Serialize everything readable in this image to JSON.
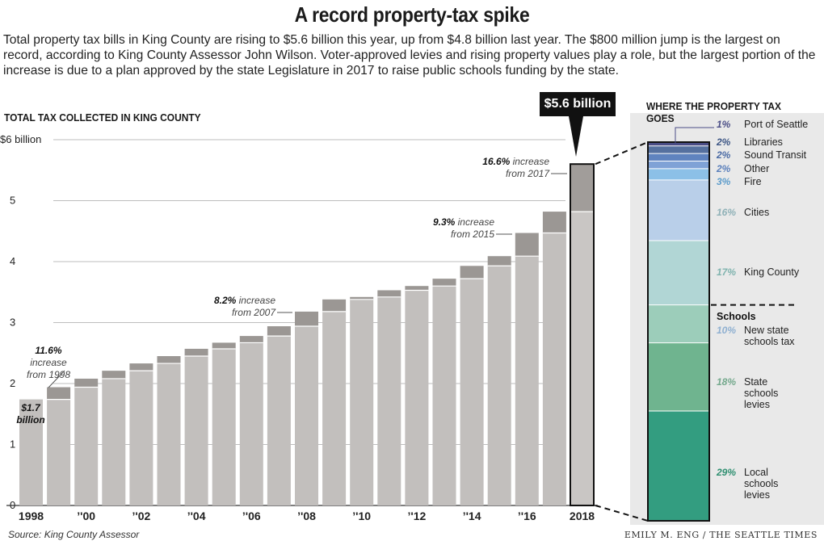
{
  "headline": "A record property-tax spike",
  "intro": "Total property tax bills in King County are rising to $5.6 billion this year, up from $4.8 billion last year. The $800 million jump is the largest on record, according to King County Assessor John Wilson. Voter-approved levies and rising property values play a role, but the largest portion of the increase is due to a plan approved by the state Legislature in 2017 to raise public schools funding by the state.",
  "left_title": "TOTAL TAX COLLECTED IN KING COUNTY",
  "right_title": "WHERE THE PROPERTY TAX GOES",
  "callout": "$5.6 billion",
  "source": "Source: King County Assessor",
  "credit": "EMILY M. ENG / THE SEATTLE TIMES",
  "colors": {
    "bar_base": "#c2bfbd",
    "bar_increase": "#9b9794",
    "bar_2018_base": "#c9c6c4",
    "bar_2018_increase": "#a19d9a"
  },
  "chart_data": [
    {
      "type": "bar",
      "title": "TOTAL TAX COLLECTED IN KING COUNTY",
      "ylim": [
        0,
        6
      ],
      "yticks": [
        0,
        1,
        2,
        3,
        4,
        5,
        6
      ],
      "ytick_labels": [
        "0",
        "1",
        "2",
        "3",
        "4",
        "5",
        "$6 billion"
      ],
      "grid": true,
      "x_labels": [
        {
          "year": 1998,
          "label": "1998"
        },
        {
          "year": 2000,
          "label": "’'00"
        },
        {
          "year": 2002,
          "label": "’'02"
        },
        {
          "year": 2004,
          "label": "’'04"
        },
        {
          "year": 2006,
          "label": "’'06"
        },
        {
          "year": 2008,
          "label": "’'08"
        },
        {
          "year": 2010,
          "label": "’'10"
        },
        {
          "year": 2012,
          "label": "’'12"
        },
        {
          "year": 2014,
          "label": "’'14"
        },
        {
          "year": 2016,
          "label": "’'16"
        },
        {
          "year": 2018,
          "label": "2018"
        }
      ],
      "categories": [
        1998,
        1999,
        2000,
        2001,
        2002,
        2003,
        2004,
        2005,
        2006,
        2007,
        2008,
        2009,
        2010,
        2011,
        2012,
        2013,
        2014,
        2015,
        2016,
        2017,
        2018
      ],
      "values": [
        1.74,
        1.94,
        2.08,
        2.21,
        2.33,
        2.45,
        2.57,
        2.67,
        2.78,
        2.94,
        3.18,
        3.38,
        3.42,
        3.53,
        3.6,
        3.72,
        3.93,
        4.09,
        4.47,
        4.82,
        5.6
      ],
      "annotations": [
        {
          "year": 1998,
          "bold": "$1.7",
          "text": "billion"
        },
        {
          "year": 1999,
          "bold": "11.6%",
          "text": "increase from 1998"
        },
        {
          "year": 2008,
          "bold": "8.2%",
          "text": "increase from 2007"
        },
        {
          "year": 2016,
          "bold": "9.3%",
          "text": "increase from 2015"
        },
        {
          "year": 2018,
          "bold": "16.6%",
          "text": "increase from 2017"
        }
      ]
    },
    {
      "type": "bar",
      "title": "WHERE THE PROPERTY TAX GOES",
      "stacked": true,
      "segments": [
        {
          "name": "Port of Seattle",
          "pct": 1,
          "label": "1%",
          "color": "#4a4d86",
          "label_color": "#4a4d86"
        },
        {
          "name": "Libraries",
          "pct": 2,
          "label": "2%",
          "color": "#55709f",
          "label_color": "#3d5685"
        },
        {
          "name": "Sound Transit",
          "pct": 2,
          "label": "2%",
          "color": "#5f83bf",
          "label_color": "#4a6aa4"
        },
        {
          "name": "Other",
          "pct": 2,
          "label": "2%",
          "color": "#7fa2d6",
          "label_color": "#5a7fbb"
        },
        {
          "name": "Fire",
          "pct": 3,
          "label": "3%",
          "color": "#8cc0e7",
          "label_color": "#5d9ccb"
        },
        {
          "name": "Cities",
          "pct": 16,
          "label": "16%",
          "color": "#b9cfe9",
          "label_color": "#8fb1b7"
        },
        {
          "name": "King County",
          "pct": 17,
          "label": "17%",
          "color": "#b1d6d5",
          "label_color": "#7fb3ae"
        },
        {
          "name": "New state schools tax",
          "pct": 10,
          "label": "10%",
          "color": "#9ccdba",
          "label_color": "#8fb0d1"
        },
        {
          "name": "State schools levies",
          "pct": 18,
          "label": "18%",
          "color": "#6fb48f",
          "label_color": "#73a88c"
        },
        {
          "name": "Local schools levies",
          "pct": 29,
          "label": "29%",
          "color": "#339d80",
          "label_color": "#2e8f70"
        }
      ],
      "group_label": "Schools"
    }
  ]
}
